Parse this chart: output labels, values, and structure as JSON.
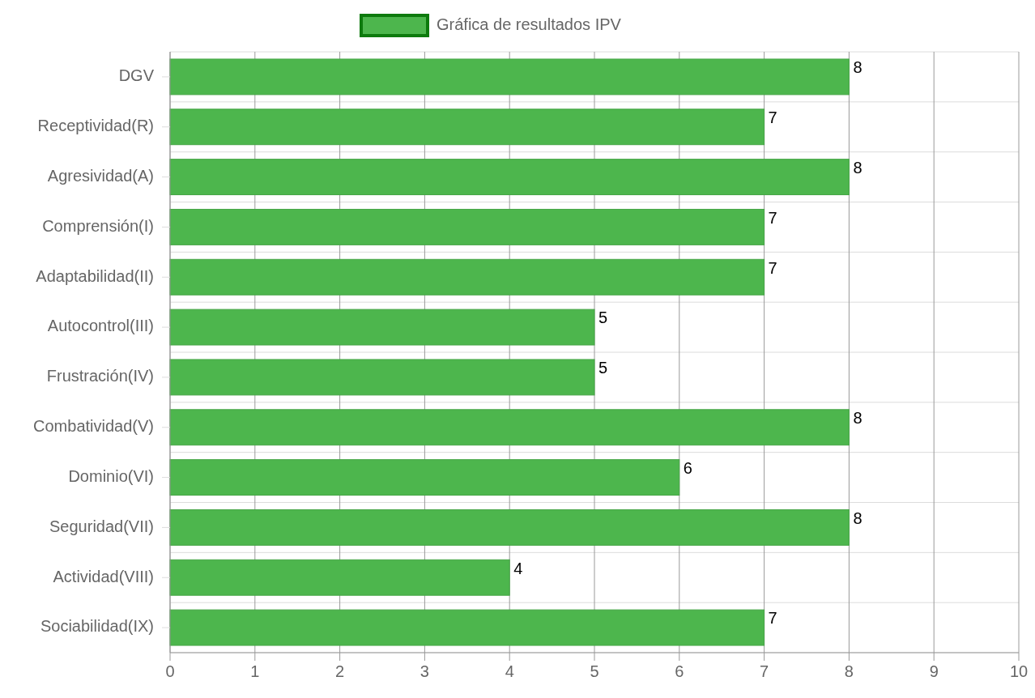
{
  "chart_data": {
    "type": "bar",
    "orientation": "horizontal",
    "categories": [
      "DGV",
      "Receptividad(R)",
      "Agresividad(A)",
      "Comprensión(I)",
      "Adaptabilidad(II)",
      "Autocontrol(III)",
      "Frustración(IV)",
      "Combatividad(V)",
      "Dominio(VI)",
      "Seguridad(VII)",
      "Actividad(VIII)",
      "Sociabilidad(IX)"
    ],
    "series": [
      {
        "name": "Gráfica de resultados IPV",
        "color": "#4db64d",
        "values": [
          8,
          7,
          8,
          7,
          7,
          5,
          5,
          8,
          6,
          8,
          4,
          7
        ]
      }
    ],
    "xlim": [
      0,
      10
    ],
    "xticks": [
      0,
      1,
      2,
      3,
      4,
      5,
      6,
      7,
      8,
      9,
      10
    ],
    "grid": true,
    "legend": "top",
    "data_labels": true
  }
}
